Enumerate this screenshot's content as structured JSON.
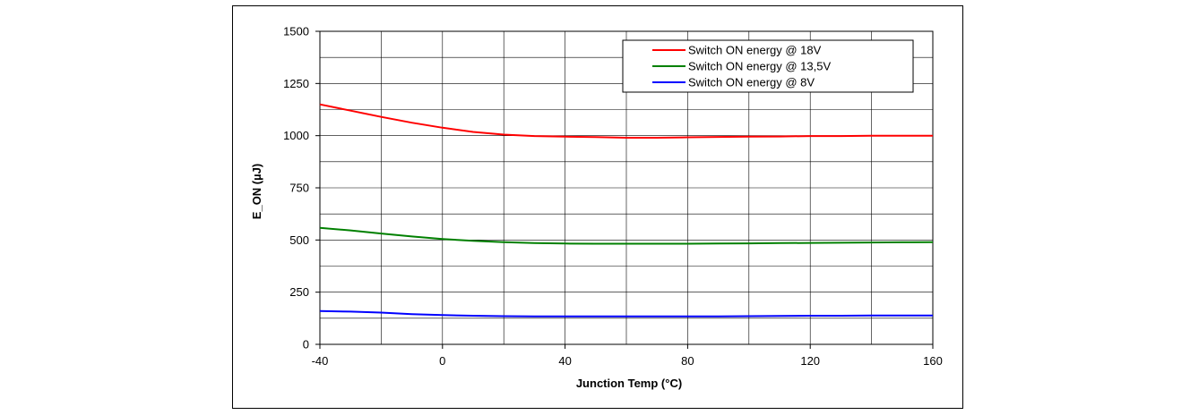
{
  "chart_data": {
    "type": "line",
    "title": "",
    "xlabel": "Junction Temp (°C)",
    "ylabel": "E_ON (µJ)",
    "xlim": [
      -40,
      160
    ],
    "ylim": [
      0,
      1500
    ],
    "x_ticks": [
      -40,
      0,
      40,
      80,
      120,
      160
    ],
    "y_ticks": [
      0,
      250,
      500,
      750,
      1000,
      1250,
      1500
    ],
    "grid": true,
    "legend_position": "top-right",
    "series": [
      {
        "name": "Switch ON energy @ 18V",
        "color": "#ff0000",
        "x": [
          -40,
          -30,
          -20,
          -10,
          0,
          10,
          20,
          30,
          40,
          50,
          60,
          70,
          80,
          90,
          100,
          110,
          120,
          130,
          140,
          150,
          160
        ],
        "values": [
          1150,
          1120,
          1090,
          1062,
          1038,
          1018,
          1005,
          998,
          995,
          993,
          990,
          990,
          992,
          994,
          995,
          996,
          998,
          998,
          1000,
          1000,
          1000
        ]
      },
      {
        "name": "Switch ON energy @ 13,5V",
        "color": "#008000",
        "x": [
          -40,
          -30,
          -20,
          -10,
          0,
          10,
          20,
          30,
          40,
          50,
          60,
          70,
          80,
          90,
          100,
          110,
          120,
          130,
          140,
          150,
          160
        ],
        "values": [
          558,
          546,
          531,
          517,
          505,
          496,
          490,
          485,
          483,
          482,
          482,
          482,
          482,
          483,
          484,
          485,
          486,
          487,
          488,
          489,
          490
        ]
      },
      {
        "name": "Switch ON energy @ 8V",
        "color": "#0000ff",
        "x": [
          -40,
          -30,
          -20,
          -10,
          0,
          10,
          20,
          30,
          40,
          50,
          60,
          70,
          80,
          90,
          100,
          110,
          120,
          130,
          140,
          150,
          160
        ],
        "values": [
          160,
          157,
          152,
          145,
          140,
          137,
          135,
          134,
          134,
          134,
          134,
          134,
          134,
          134,
          135,
          136,
          137,
          137,
          138,
          138,
          138
        ]
      }
    ]
  }
}
